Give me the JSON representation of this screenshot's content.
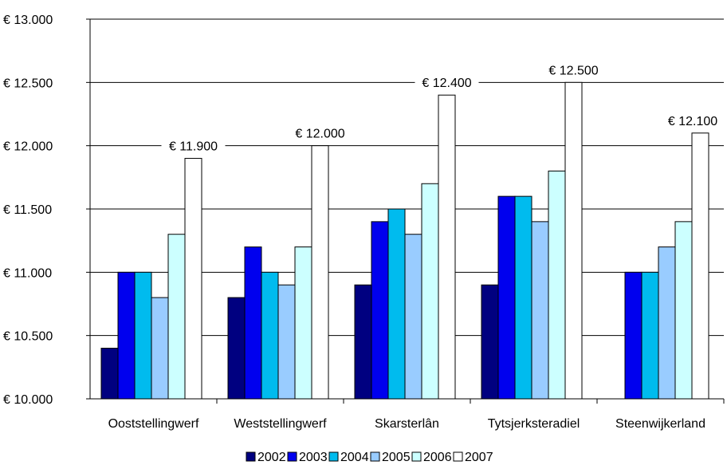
{
  "chart_data": {
    "type": "bar",
    "categories": [
      "Ooststellingwerf",
      "Weststellingwerf",
      "Skarsterlân",
      "Tytsjerksteradiel",
      "Steenwijkerland"
    ],
    "series": [
      {
        "name": "2002",
        "color": "#000080",
        "values": [
          10400,
          10800,
          10900,
          10900,
          null
        ]
      },
      {
        "name": "2003",
        "color": "#0000EE",
        "values": [
          11000,
          11200,
          11400,
          11600,
          11000
        ]
      },
      {
        "name": "2004",
        "color": "#00BBEE",
        "values": [
          11000,
          11000,
          11500,
          11600,
          11000
        ]
      },
      {
        "name": "2005",
        "color": "#99CCFF",
        "values": [
          10800,
          10900,
          11300,
          11400,
          11200
        ]
      },
      {
        "name": "2006",
        "color": "#CCFFFF",
        "values": [
          11300,
          11200,
          11700,
          11800,
          11400
        ]
      },
      {
        "name": "2007",
        "color": "#FFFFFF",
        "values": [
          11900,
          12000,
          12400,
          12500,
          12100
        ]
      }
    ],
    "data_labels": [
      "€ 11.900",
      "€ 12.000",
      "€ 12.400",
      "€ 12.500",
      "€ 12.100"
    ],
    "y_ticks": [
      {
        "value": 10000,
        "label": "€ 10.000"
      },
      {
        "value": 10500,
        "label": "€ 10.500"
      },
      {
        "value": 11000,
        "label": "€ 11.000"
      },
      {
        "value": 11500,
        "label": "€ 11.500"
      },
      {
        "value": 12000,
        "label": "€ 12.000"
      },
      {
        "value": 12500,
        "label": "€ 12.500"
      },
      {
        "value": 13000,
        "label": "€ 13.000"
      }
    ],
    "ylim": [
      10000,
      13000
    ],
    "grid": true,
    "legend_position": "bottom",
    "title": "",
    "xlabel": "",
    "ylabel": ""
  }
}
